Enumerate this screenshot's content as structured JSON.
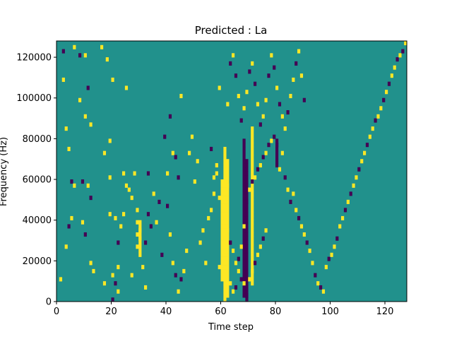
{
  "chart_data": {
    "type": "heatmap",
    "title": "Predicted : La",
    "xlabel": "Time step",
    "ylabel": "Frequency (Hz)",
    "xlim": [
      0,
      128
    ],
    "ylim": [
      0,
      128000
    ],
    "xticks": [
      0,
      20,
      40,
      60,
      80,
      100,
      120
    ],
    "yticks": [
      0,
      20000,
      40000,
      60000,
      80000,
      100000,
      120000
    ],
    "x_tick_labels": [
      "0",
      "20",
      "40",
      "60",
      "80",
      "100",
      "120"
    ],
    "y_tick_labels": [
      "0",
      "20000",
      "40000",
      "60000",
      "80000",
      "100000",
      "120000"
    ],
    "grid": false,
    "colormap": "viridis",
    "colors": {
      "background": "#21918c",
      "high": "#fde725",
      "low": "#440154"
    },
    "levels": {
      "background": 0,
      "high": 1,
      "low": -1
    },
    "cell_size": {
      "time_steps": 1,
      "frequency_hz": 2000
    },
    "cells": [
      [
        2,
        122000,
        -1
      ],
      [
        3,
        84000,
        1
      ],
      [
        4,
        74000,
        1
      ],
      [
        5,
        58000,
        -1
      ],
      [
        6,
        56000,
        1
      ],
      [
        5,
        40000,
        1
      ],
      [
        4,
        36000,
        -1
      ],
      [
        3,
        26000,
        1
      ],
      [
        1,
        10000,
        1
      ],
      [
        2,
        108000,
        1
      ],
      [
        6,
        124000,
        1
      ],
      [
        8,
        120000,
        -1
      ],
      [
        8,
        98000,
        1
      ],
      [
        9,
        58000,
        -1
      ],
      [
        9,
        38000,
        1
      ],
      [
        10,
        32000,
        -1
      ],
      [
        10,
        120000,
        1
      ],
      [
        11,
        104000,
        -1
      ],
      [
        10,
        90000,
        1
      ],
      [
        12,
        86000,
        1
      ],
      [
        11,
        56000,
        1
      ],
      [
        12,
        50000,
        -1
      ],
      [
        12,
        18000,
        1
      ],
      [
        13,
        14000,
        1
      ],
      [
        16,
        124000,
        1
      ],
      [
        18,
        118000,
        1
      ],
      [
        17,
        72000,
        1
      ],
      [
        19,
        78000,
        1
      ],
      [
        19,
        60000,
        1
      ],
      [
        19,
        42000,
        1
      ],
      [
        20,
        12000,
        1
      ],
      [
        21,
        8000,
        -1
      ],
      [
        22,
        4000,
        1
      ],
      [
        23,
        36000,
        1
      ],
      [
        24,
        42000,
        1
      ],
      [
        24,
        62000,
        1
      ],
      [
        25,
        56000,
        1
      ],
      [
        25,
        104000,
        1
      ],
      [
        26,
        54000,
        1
      ],
      [
        27,
        50000,
        1
      ],
      [
        27,
        12000,
        1
      ],
      [
        20,
        0,
        -1
      ],
      [
        22,
        16000,
        1
      ],
      [
        21,
        40000,
        1
      ],
      [
        22,
        28000,
        -1
      ],
      [
        20,
        108000,
        1
      ],
      [
        17,
        8000,
        1
      ],
      [
        28,
        62000,
        1
      ],
      [
        29,
        44000,
        1
      ],
      [
        29,
        38000,
        1
      ],
      [
        29,
        32000,
        1
      ],
      [
        29,
        26000,
        1
      ],
      [
        30,
        34000,
        1
      ],
      [
        30,
        30000,
        1
      ],
      [
        31,
        16000,
        1
      ],
      [
        32,
        6000,
        1
      ],
      [
        32,
        28000,
        -1
      ],
      [
        33,
        62000,
        -1
      ],
      [
        33,
        42000,
        -1
      ],
      [
        34,
        36000,
        -1
      ],
      [
        35,
        52000,
        1
      ],
      [
        36,
        38000,
        1
      ],
      [
        37,
        48000,
        -1
      ],
      [
        38,
        22000,
        -1
      ],
      [
        40,
        62000,
        1
      ],
      [
        41,
        90000,
        -1
      ],
      [
        42,
        72000,
        1
      ],
      [
        43,
        70000,
        -1
      ],
      [
        44,
        60000,
        -1
      ],
      [
        45,
        100000,
        1
      ],
      [
        46,
        14000,
        1
      ],
      [
        47,
        24000,
        1
      ],
      [
        48,
        72000,
        1
      ],
      [
        49,
        80000,
        1
      ],
      [
        50,
        58000,
        1
      ],
      [
        51,
        68000,
        1
      ],
      [
        52,
        28000,
        1
      ],
      [
        53,
        34000,
        1
      ],
      [
        54,
        18000,
        1
      ],
      [
        55,
        40000,
        1
      ],
      [
        56,
        44000,
        1
      ],
      [
        57,
        52000,
        1
      ],
      [
        58,
        62000,
        1
      ],
      [
        59,
        16000,
        1
      ],
      [
        60,
        22000,
        1
      ],
      [
        61,
        30000,
        1
      ],
      [
        62,
        56000,
        1
      ],
      [
        63,
        8000,
        1
      ],
      [
        64,
        4000,
        1
      ],
      [
        65,
        6000,
        -1
      ],
      [
        66,
        20000,
        -1
      ],
      [
        67,
        26000,
        1
      ],
      [
        68,
        36000,
        1
      ],
      [
        69,
        48000,
        -1
      ],
      [
        70,
        54000,
        1
      ],
      [
        71,
        58000,
        -1
      ],
      [
        72,
        60000,
        1
      ],
      [
        73,
        64000,
        -1
      ],
      [
        74,
        66000,
        1
      ],
      [
        75,
        70000,
        -1
      ],
      [
        76,
        72000,
        1
      ],
      [
        77,
        76000,
        -1
      ],
      [
        78,
        78000,
        1
      ],
      [
        79,
        80000,
        -1
      ],
      [
        80,
        76000,
        -1
      ],
      [
        81,
        64000,
        1
      ],
      [
        82,
        72000,
        1
      ],
      [
        83,
        60000,
        -1
      ],
      [
        84,
        54000,
        1
      ],
      [
        85,
        48000,
        -1
      ],
      [
        86,
        52000,
        1
      ],
      [
        87,
        44000,
        1
      ],
      [
        88,
        40000,
        -1
      ],
      [
        89,
        36000,
        1
      ],
      [
        90,
        32000,
        1
      ],
      [
        91,
        28000,
        -1
      ],
      [
        92,
        24000,
        1
      ],
      [
        93,
        18000,
        1
      ],
      [
        94,
        12000,
        -1
      ],
      [
        95,
        8000,
        1
      ],
      [
        96,
        6000,
        -1
      ],
      [
        97,
        4000,
        1
      ],
      [
        98,
        16000,
        1
      ],
      [
        99,
        20000,
        -1
      ],
      [
        100,
        22000,
        1
      ],
      [
        101,
        26000,
        1
      ],
      [
        102,
        30000,
        -1
      ],
      [
        103,
        36000,
        1
      ],
      [
        104,
        40000,
        1
      ],
      [
        105,
        44000,
        -1
      ],
      [
        106,
        48000,
        1
      ],
      [
        107,
        52000,
        -1
      ],
      [
        108,
        56000,
        1
      ],
      [
        109,
        60000,
        1
      ],
      [
        110,
        64000,
        -1
      ],
      [
        111,
        68000,
        1
      ],
      [
        112,
        72000,
        1
      ],
      [
        113,
        76000,
        -1
      ],
      [
        114,
        80000,
        1
      ],
      [
        115,
        84000,
        1
      ],
      [
        116,
        88000,
        -1
      ],
      [
        117,
        90000,
        1
      ],
      [
        118,
        94000,
        1
      ],
      [
        119,
        98000,
        -1
      ],
      [
        120,
        102000,
        1
      ],
      [
        121,
        106000,
        -1
      ],
      [
        122,
        110000,
        1
      ],
      [
        123,
        114000,
        1
      ],
      [
        124,
        118000,
        -1
      ],
      [
        125,
        120000,
        1
      ],
      [
        126,
        122000,
        -1
      ],
      [
        127,
        126000,
        1
      ],
      [
        39,
        80000,
        -1
      ],
      [
        40,
        46000,
        -1
      ],
      [
        41,
        32000,
        1
      ],
      [
        42,
        18000,
        1
      ],
      [
        43,
        12000,
        -1
      ],
      [
        44,
        4000,
        1
      ],
      [
        45,
        10000,
        -1
      ],
      [
        56,
        74000,
        -1
      ],
      [
        57,
        60000,
        1
      ],
      [
        58,
        66000,
        1
      ],
      [
        59,
        50000,
        1
      ],
      [
        60,
        46000,
        1
      ],
      [
        61,
        40000,
        1
      ],
      [
        62,
        34000,
        1
      ],
      [
        63,
        28000,
        -1
      ],
      [
        64,
        24000,
        1
      ],
      [
        65,
        18000,
        1
      ],
      [
        66,
        14000,
        1
      ],
      [
        67,
        10000,
        -1
      ],
      [
        68,
        8000,
        1
      ],
      [
        69,
        2000,
        -1
      ],
      [
        70,
        10000,
        1
      ],
      [
        71,
        14000,
        1
      ],
      [
        72,
        18000,
        -1
      ],
      [
        73,
        22000,
        1
      ],
      [
        74,
        26000,
        1
      ],
      [
        75,
        30000,
        -1
      ],
      [
        76,
        34000,
        1
      ],
      [
        59,
        104000,
        1
      ],
      [
        62,
        96000,
        1
      ],
      [
        63,
        116000,
        -1
      ],
      [
        64,
        120000,
        1
      ],
      [
        65,
        110000,
        -1
      ],
      [
        66,
        100000,
        1
      ],
      [
        67,
        88000,
        -1
      ],
      [
        68,
        94000,
        1
      ],
      [
        69,
        102000,
        1
      ],
      [
        70,
        112000,
        -1
      ],
      [
        71,
        116000,
        1
      ],
      [
        72,
        106000,
        -1
      ],
      [
        73,
        96000,
        1
      ],
      [
        74,
        86000,
        -1
      ],
      [
        75,
        90000,
        1
      ],
      [
        76,
        98000,
        1
      ],
      [
        77,
        110000,
        -1
      ],
      [
        78,
        120000,
        1
      ],
      [
        79,
        114000,
        -1
      ],
      [
        80,
        104000,
        1
      ],
      [
        81,
        96000,
        -1
      ],
      [
        82,
        90000,
        1
      ],
      [
        83,
        84000,
        1
      ],
      [
        84,
        92000,
        -1
      ],
      [
        85,
        100000,
        1
      ],
      [
        86,
        108000,
        1
      ],
      [
        87,
        116000,
        -1
      ],
      [
        88,
        122000,
        1
      ],
      [
        89,
        110000,
        1
      ],
      [
        90,
        98000,
        -1
      ]
    ],
    "columns_dense": [
      {
        "x": 61,
        "y_from": 0,
        "y_to": 76000,
        "value": 1
      },
      {
        "x": 62,
        "y_from": 2000,
        "y_to": 70000,
        "value": 1
      },
      {
        "x": 60,
        "y_from": 10000,
        "y_to": 60000,
        "value": 1
      },
      {
        "x": 68,
        "y_from": 2000,
        "y_to": 80000,
        "value": -1
      },
      {
        "x": 69,
        "y_from": 0,
        "y_to": 70000,
        "value": -1
      },
      {
        "x": 71,
        "y_from": 8000,
        "y_to": 86000,
        "value": 1
      },
      {
        "x": 80,
        "y_from": 66000,
        "y_to": 80000,
        "value": -1
      },
      {
        "x": 30,
        "y_from": 22000,
        "y_to": 40000,
        "value": 1
      }
    ]
  }
}
